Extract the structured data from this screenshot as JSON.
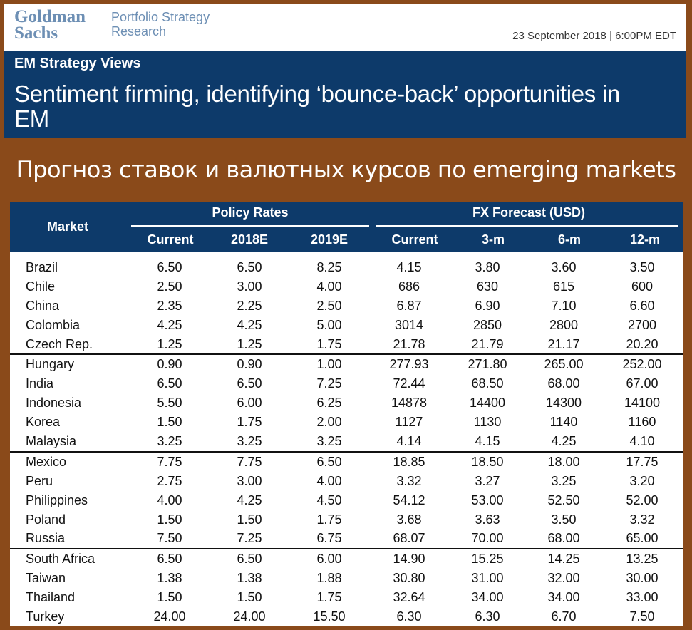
{
  "header": {
    "logo_line1": "Goldman",
    "logo_line2": "Sachs",
    "division_line1": "Portfolio Strategy",
    "division_line2": "Research",
    "date": "23 September 2018 | 6:00PM EDT"
  },
  "banner": {
    "kicker": "EM Strategy Views",
    "title": "Sentiment firming, identifying ‘bounce-back’ opportunities in EM"
  },
  "caption": "Прогноз ставок и валютных курсов по emerging markets",
  "table": {
    "market_header": "Market",
    "group_policy": "Policy Rates",
    "group_fx": "FX Forecast (USD)",
    "columns": [
      "Current",
      "2018E",
      "2019E",
      "Current",
      "3-m",
      "6-m",
      "12-m"
    ],
    "rows": [
      [
        "Brazil",
        "6.50",
        "6.50",
        "8.25",
        "4.15",
        "3.80",
        "3.60",
        "3.50"
      ],
      [
        "Chile",
        "2.50",
        "3.00",
        "4.00",
        "686",
        "630",
        "615",
        "600"
      ],
      [
        "China",
        "2.35",
        "2.25",
        "2.50",
        "6.87",
        "6.90",
        "7.10",
        "6.60"
      ],
      [
        "Colombia",
        "4.25",
        "4.25",
        "5.00",
        "3014",
        "2850",
        "2800",
        "2700"
      ],
      [
        "Czech Rep.",
        "1.25",
        "1.25",
        "1.75",
        "21.78",
        "21.79",
        "21.17",
        "20.20"
      ],
      [
        "Hungary",
        "0.90",
        "0.90",
        "1.00",
        "277.93",
        "271.80",
        "265.00",
        "252.00"
      ],
      [
        "India",
        "6.50",
        "6.50",
        "7.25",
        "72.44",
        "68.50",
        "68.00",
        "67.00"
      ],
      [
        "Indonesia",
        "5.50",
        "6.00",
        "6.25",
        "14878",
        "14400",
        "14300",
        "14100"
      ],
      [
        "Korea",
        "1.50",
        "1.75",
        "2.00",
        "1127",
        "1130",
        "1140",
        "1160"
      ],
      [
        "Malaysia",
        "3.25",
        "3.25",
        "3.25",
        "4.14",
        "4.15",
        "4.25",
        "4.10"
      ],
      [
        "Mexico",
        "7.75",
        "7.75",
        "6.50",
        "18.85",
        "18.50",
        "18.00",
        "17.75"
      ],
      [
        "Peru",
        "2.75",
        "3.00",
        "4.00",
        "3.32",
        "3.27",
        "3.25",
        "3.20"
      ],
      [
        "Philippines",
        "4.00",
        "4.25",
        "4.50",
        "54.12",
        "53.00",
        "52.50",
        "52.00"
      ],
      [
        "Poland",
        "1.50",
        "1.50",
        "1.75",
        "3.68",
        "3.63",
        "3.50",
        "3.32"
      ],
      [
        "Russia",
        "7.50",
        "7.25",
        "6.75",
        "68.07",
        "70.00",
        "68.00",
        "65.00"
      ],
      [
        "South Africa",
        "6.50",
        "6.50",
        "6.00",
        "14.90",
        "15.25",
        "14.25",
        "13.25"
      ],
      [
        "Taiwan",
        "1.38",
        "1.38",
        "1.88",
        "30.80",
        "31.00",
        "32.00",
        "30.00"
      ],
      [
        "Thailand",
        "1.50",
        "1.50",
        "1.75",
        "32.64",
        "34.00",
        "34.00",
        "33.00"
      ],
      [
        "Turkey",
        "24.00",
        "24.00",
        "15.50",
        "6.30",
        "6.30",
        "6.70",
        "7.50"
      ]
    ]
  }
}
